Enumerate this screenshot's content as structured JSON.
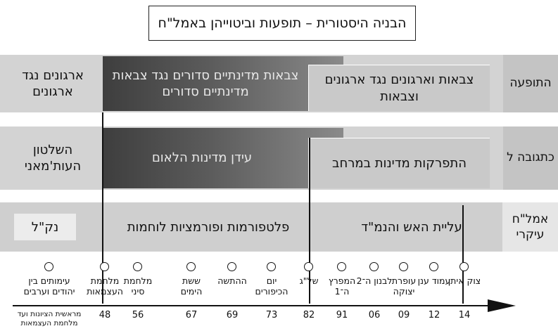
{
  "title": "הבניה היסטורית – תופעות וביטוייהן באמל\"ח",
  "rows": {
    "phenomenon": {
      "label": "התופעה",
      "left": "ארגונים נגד ארגונים",
      "dark": "צבאות מדינתיים סדורים נגד צבאות מדינתיים סדורים",
      "light": "צבאות וארגונים נגד ארגונים וצבאות"
    },
    "response": {
      "label": "כתגובה ל",
      "left": "השלטון העות'מאני",
      "dark": "עידן מדינות הלאום",
      "light": "התפרקות מדינות במרחב"
    },
    "weapons": {
      "label": "אמל\"ח עיקרי",
      "left": "נק\"ל",
      "middle": "פלטפורמות ופורמציות לוחמות",
      "right": "עליית האש והנמ\"ד"
    }
  },
  "events": [
    {
      "name": "עימותים בין יהודים וערבים",
      "year": "מראשית הציונות ועד מלחמת העצמאות"
    },
    {
      "name": "מלחמת העצמאות",
      "year": "48"
    },
    {
      "name": "מלחמת סיני",
      "year": "56"
    },
    {
      "name": "ששת הימים",
      "year": "67"
    },
    {
      "name": "ההתשה",
      "year": "69"
    },
    {
      "name": "יום הכיפורים",
      "year": "73"
    },
    {
      "name": "של\"ג",
      "year": "82"
    },
    {
      "name": "המפרץ ה־1",
      "year": "91"
    },
    {
      "name": "לבנון ה־2",
      "year": "06"
    },
    {
      "name": "עופרת יצוקה",
      "year": "09"
    },
    {
      "name": "עמוד ענן",
      "year": "12"
    },
    {
      "name": "צוק איתן",
      "year": "14"
    }
  ]
}
